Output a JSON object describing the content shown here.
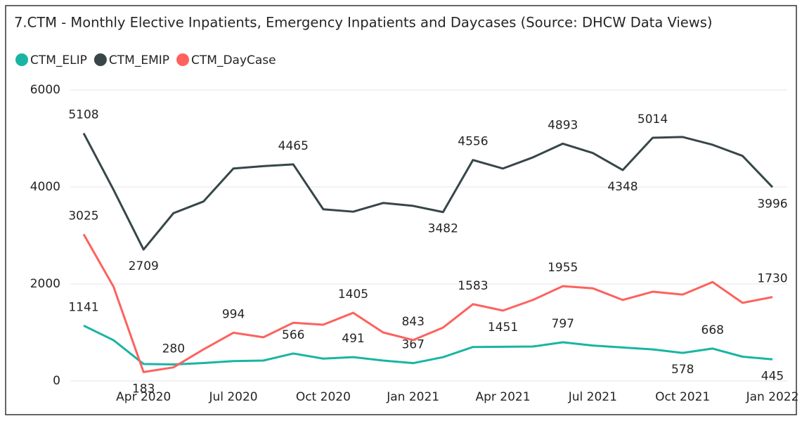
{
  "chart_data": {
    "type": "line",
    "title": "7.CTM - Monthly Elective Inpatients, Emergency Inpatients and Daycases (Source: DHCW Data Views)",
    "categories": [
      null,
      null,
      "Apr 2020",
      null,
      null,
      "Jul 2020",
      null,
      null,
      "Oct 2020",
      null,
      null,
      "Jan 2021",
      null,
      null,
      "Apr 2021",
      null,
      null,
      "Jul 2021",
      null,
      null,
      "Oct 2021",
      null,
      null,
      "Jan 2022"
    ],
    "series": [
      {
        "name": "CTM_ELIP",
        "color": "#1ab4a4",
        "values": [
          1141,
          840,
          350,
          340,
          370,
          410,
          420,
          566,
          460,
          491,
          420,
          367,
          490,
          700,
          705,
          710,
          797,
          730,
          690,
          650,
          578,
          668,
          500,
          445
        ],
        "value_labels": [
          "1141",
          null,
          null,
          null,
          null,
          null,
          null,
          "566",
          null,
          "491",
          null,
          "367",
          null,
          null,
          null,
          null,
          "797",
          null,
          null,
          null,
          "578",
          "668",
          null,
          "445"
        ]
      },
      {
        "name": "CTM_EMIP",
        "color": "#374649",
        "values": [
          5108,
          3940,
          2709,
          3460,
          3700,
          4380,
          4430,
          4465,
          3540,
          3490,
          3670,
          3610,
          3482,
          4556,
          4380,
          4610,
          4893,
          4700,
          4348,
          5014,
          5030,
          4870,
          4640,
          3996
        ],
        "value_labels": [
          "5108",
          null,
          "2709",
          null,
          null,
          null,
          null,
          "4465",
          null,
          null,
          null,
          null,
          "3482",
          "4556",
          null,
          null,
          "4893",
          null,
          "4348",
          "5014",
          null,
          null,
          null,
          "3996"
        ]
      },
      {
        "name": "CTM_DayCase",
        "color": "#fd625e",
        "values": [
          3025,
          1940,
          183,
          280,
          650,
          994,
          900,
          1200,
          1160,
          1405,
          1000,
          843,
          1100,
          1583,
          1451,
          1670,
          1955,
          1910,
          1670,
          1840,
          1780,
          2040,
          1610,
          1730
        ],
        "value_labels": [
          "3025",
          null,
          "183",
          "280",
          null,
          "994",
          null,
          null,
          null,
          "1405",
          null,
          "843",
          null,
          "1583",
          "1451",
          null,
          "1955",
          null,
          null,
          null,
          null,
          null,
          null,
          "1730"
        ]
      }
    ],
    "ylim": [
      0,
      6000
    ],
    "yticks": [
      0,
      2000,
      4000,
      6000
    ],
    "grid": true,
    "legend": "top-left"
  }
}
